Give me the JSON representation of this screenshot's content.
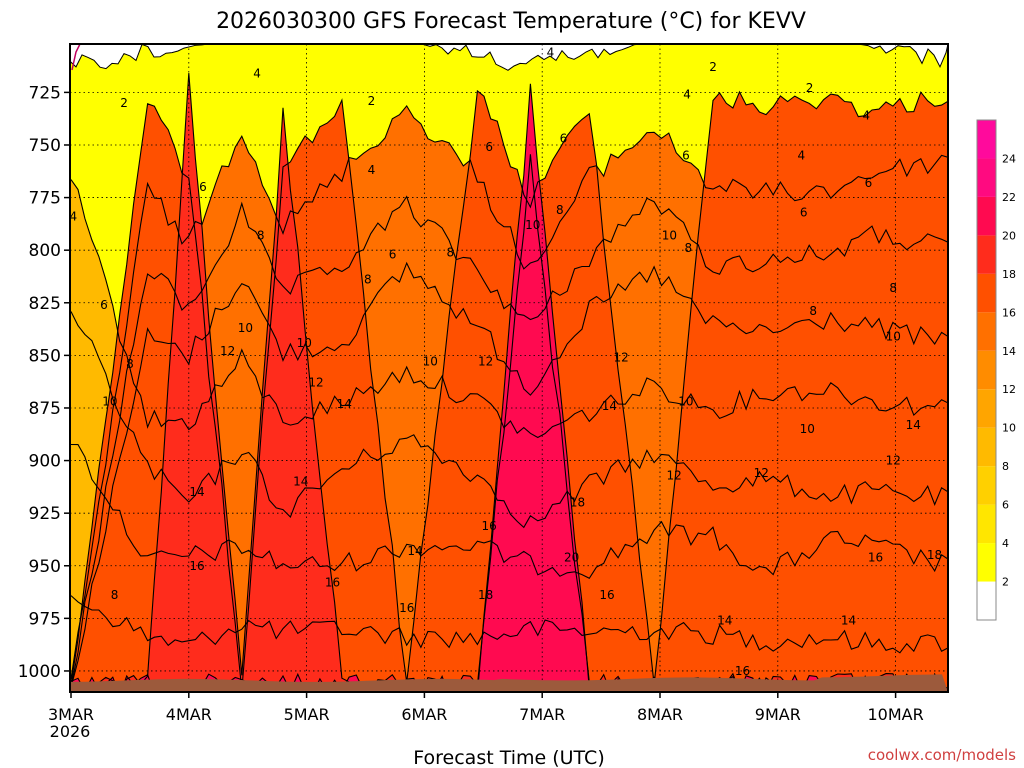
{
  "chart_data": {
    "type": "heatmap",
    "title": "2026030300 GFS Forecast Temperature (°C) for KEVV",
    "xlabel": "Forecast Time (UTC)",
    "ylabel": "",
    "x_categories": [
      "3MAR",
      "4MAR",
      "5MAR",
      "6MAR",
      "7MAR",
      "8MAR",
      "9MAR",
      "10MAR"
    ],
    "x_sublabel": "2026",
    "x_range_days": [
      0,
      7.45
    ],
    "y_ticks": [
      "725",
      "750",
      "775",
      "800",
      "825",
      "850",
      "875",
      "900",
      "925",
      "950",
      "975",
      "1000"
    ],
    "y_range_hpa": [
      702,
      1010
    ],
    "colorbar": {
      "levels": [
        "2",
        "4",
        "6",
        "8",
        "10",
        "12",
        "14",
        "16",
        "18",
        "20",
        "22",
        "24"
      ],
      "colors": [
        "#ffffff",
        "#ffff00",
        "#ffe600",
        "#ffd000",
        "#ffba00",
        "#ffa500",
        "#ff8c00",
        "#ff7000",
        "#ff5000",
        "#ff2c1c",
        "#ff0a50",
        "#ff0a80",
        "#ff0a9c"
      ]
    },
    "columns": [
      {
        "t": 0.0,
        "contours": [
          2,
          4,
          6,
          8
        ]
      },
      {
        "t": 0.65,
        "contours": [
          2,
          4,
          6,
          8,
          10,
          12,
          14,
          16
        ]
      },
      {
        "t": 1.0,
        "contours": [
          2,
          4,
          6,
          8,
          10,
          12,
          14,
          16,
          18
        ]
      },
      {
        "t": 1.45,
        "contours": [
          4,
          6,
          8,
          10,
          12,
          14,
          16
        ]
      },
      {
        "t": 1.8,
        "contours": [
          2,
          4,
          6,
          8,
          10,
          12,
          14,
          16,
          18
        ]
      },
      {
        "t": 2.3,
        "contours": [
          2,
          4,
          6,
          8,
          10,
          12,
          14,
          16
        ]
      },
      {
        "t": 2.85,
        "contours": [
          4,
          6,
          8,
          10,
          12,
          14,
          16
        ]
      },
      {
        "t": 3.45,
        "contours": [
          4,
          6,
          8,
          10,
          12,
          14,
          16,
          18
        ]
      },
      {
        "t": 3.9,
        "contours": [
          4,
          6,
          8,
          10,
          12,
          14,
          16,
          18,
          20,
          22
        ]
      },
      {
        "t": 4.4,
        "contours": [
          4,
          6,
          8,
          10,
          12,
          14,
          16,
          18
        ]
      },
      {
        "t": 4.95,
        "contours": [
          4,
          6,
          8,
          10,
          12,
          14,
          16
        ]
      },
      {
        "t": 5.45,
        "contours": [
          2,
          4,
          6,
          8,
          10,
          12,
          14,
          16
        ]
      },
      {
        "t": 5.9,
        "contours": [
          2,
          4,
          6,
          8,
          10,
          12,
          14,
          16
        ]
      },
      {
        "t": 6.45,
        "contours": [
          4,
          6,
          8,
          10,
          12,
          14,
          16,
          18
        ]
      },
      {
        "t": 6.8,
        "contours": [
          4,
          6,
          8,
          10,
          12,
          14,
          16,
          18
        ]
      },
      {
        "t": 7.45,
        "contours": [
          4,
          6,
          8,
          10,
          12,
          14,
          16,
          18
        ]
      }
    ],
    "contour_labels": [
      {
        "text": "2",
        "t": 0.45,
        "p": 730
      },
      {
        "text": "4",
        "t": 0.02,
        "p": 784
      },
      {
        "text": "6",
        "t": 0.28,
        "p": 826
      },
      {
        "text": "8",
        "t": 0.5,
        "p": 854
      },
      {
        "text": "10",
        "t": 0.33,
        "p": 872
      },
      {
        "text": "14",
        "t": 1.07,
        "p": 915
      },
      {
        "text": "16",
        "t": 1.07,
        "p": 950
      },
      {
        "text": "8",
        "t": 0.37,
        "p": 964
      },
      {
        "text": "4",
        "t": 1.58,
        "p": 716
      },
      {
        "text": "6",
        "t": 1.12,
        "p": 770
      },
      {
        "text": "8",
        "t": 1.61,
        "p": 793
      },
      {
        "text": "10",
        "t": 1.48,
        "p": 837
      },
      {
        "text": "12",
        "t": 1.33,
        "p": 848
      },
      {
        "text": "2",
        "t": 2.55,
        "p": 729
      },
      {
        "text": "4",
        "t": 2.55,
        "p": 762
      },
      {
        "text": "6",
        "t": 2.73,
        "p": 802
      },
      {
        "text": "8",
        "t": 2.52,
        "p": 814
      },
      {
        "text": "10",
        "t": 1.98,
        "p": 844
      },
      {
        "text": "12",
        "t": 2.08,
        "p": 863
      },
      {
        "text": "14",
        "t": 2.32,
        "p": 873
      },
      {
        "text": "14",
        "t": 1.95,
        "p": 910
      },
      {
        "text": "16",
        "t": 2.22,
        "p": 958
      },
      {
        "text": "8",
        "t": 3.22,
        "p": 801
      },
      {
        "text": "10",
        "t": 3.05,
        "p": 853
      },
      {
        "text": "12",
        "t": 3.52,
        "p": 853
      },
      {
        "text": "14",
        "t": 2.92,
        "p": 943
      },
      {
        "text": "16",
        "t": 2.85,
        "p": 970
      },
      {
        "text": "6",
        "t": 3.55,
        "p": 751
      },
      {
        "text": "10",
        "t": 3.92,
        "p": 788
      },
      {
        "text": "8",
        "t": 4.15,
        "p": 781
      },
      {
        "text": "4",
        "t": 4.07,
        "p": 706
      },
      {
        "text": "6",
        "t": 4.18,
        "p": 747
      },
      {
        "text": "18",
        "t": 4.3,
        "p": 920
      },
      {
        "text": "16",
        "t": 3.55,
        "p": 931
      },
      {
        "text": "18",
        "t": 3.52,
        "p": 964
      },
      {
        "text": "20",
        "t": 4.25,
        "p": 946
      },
      {
        "text": "16",
        "t": 4.55,
        "p": 964
      },
      {
        "text": "12",
        "t": 4.67,
        "p": 851
      },
      {
        "text": "14",
        "t": 4.57,
        "p": 874
      },
      {
        "text": "10",
        "t": 5.08,
        "p": 793
      },
      {
        "text": "8",
        "t": 5.24,
        "p": 799
      },
      {
        "text": "6",
        "t": 5.22,
        "p": 755
      },
      {
        "text": "4",
        "t": 5.23,
        "p": 726
      },
      {
        "text": "2",
        "t": 5.45,
        "p": 713
      },
      {
        "text": "2",
        "t": 6.27,
        "p": 723
      },
      {
        "text": "10",
        "t": 5.22,
        "p": 872
      },
      {
        "text": "12",
        "t": 5.12,
        "p": 907
      },
      {
        "text": "4",
        "t": 6.2,
        "p": 755
      },
      {
        "text": "6",
        "t": 6.22,
        "p": 782
      },
      {
        "text": "8",
        "t": 6.3,
        "p": 829
      },
      {
        "text": "10",
        "t": 6.25,
        "p": 885
      },
      {
        "text": "12",
        "t": 5.86,
        "p": 906
      },
      {
        "text": "14",
        "t": 5.55,
        "p": 976
      },
      {
        "text": "14",
        "t": 6.6,
        "p": 976
      },
      {
        "text": "16",
        "t": 5.7,
        "p": 1000
      },
      {
        "text": "4",
        "t": 6.75,
        "p": 736
      },
      {
        "text": "6",
        "t": 6.77,
        "p": 768
      },
      {
        "text": "8",
        "t": 6.98,
        "p": 818
      },
      {
        "text": "10",
        "t": 6.98,
        "p": 841
      },
      {
        "text": "14",
        "t": 7.15,
        "p": 883
      },
      {
        "text": "12",
        "t": 6.98,
        "p": 900
      },
      {
        "text": "16",
        "t": 6.83,
        "p": 946
      },
      {
        "text": "18",
        "t": 7.33,
        "p": 945
      }
    ]
  },
  "watermark": "coolwx.com/models",
  "colors": {
    "ground": "#9c5a3c",
    "colorbar_frame": "#888888",
    "watermark": "#d04040",
    "corner_line": "#c00060"
  }
}
